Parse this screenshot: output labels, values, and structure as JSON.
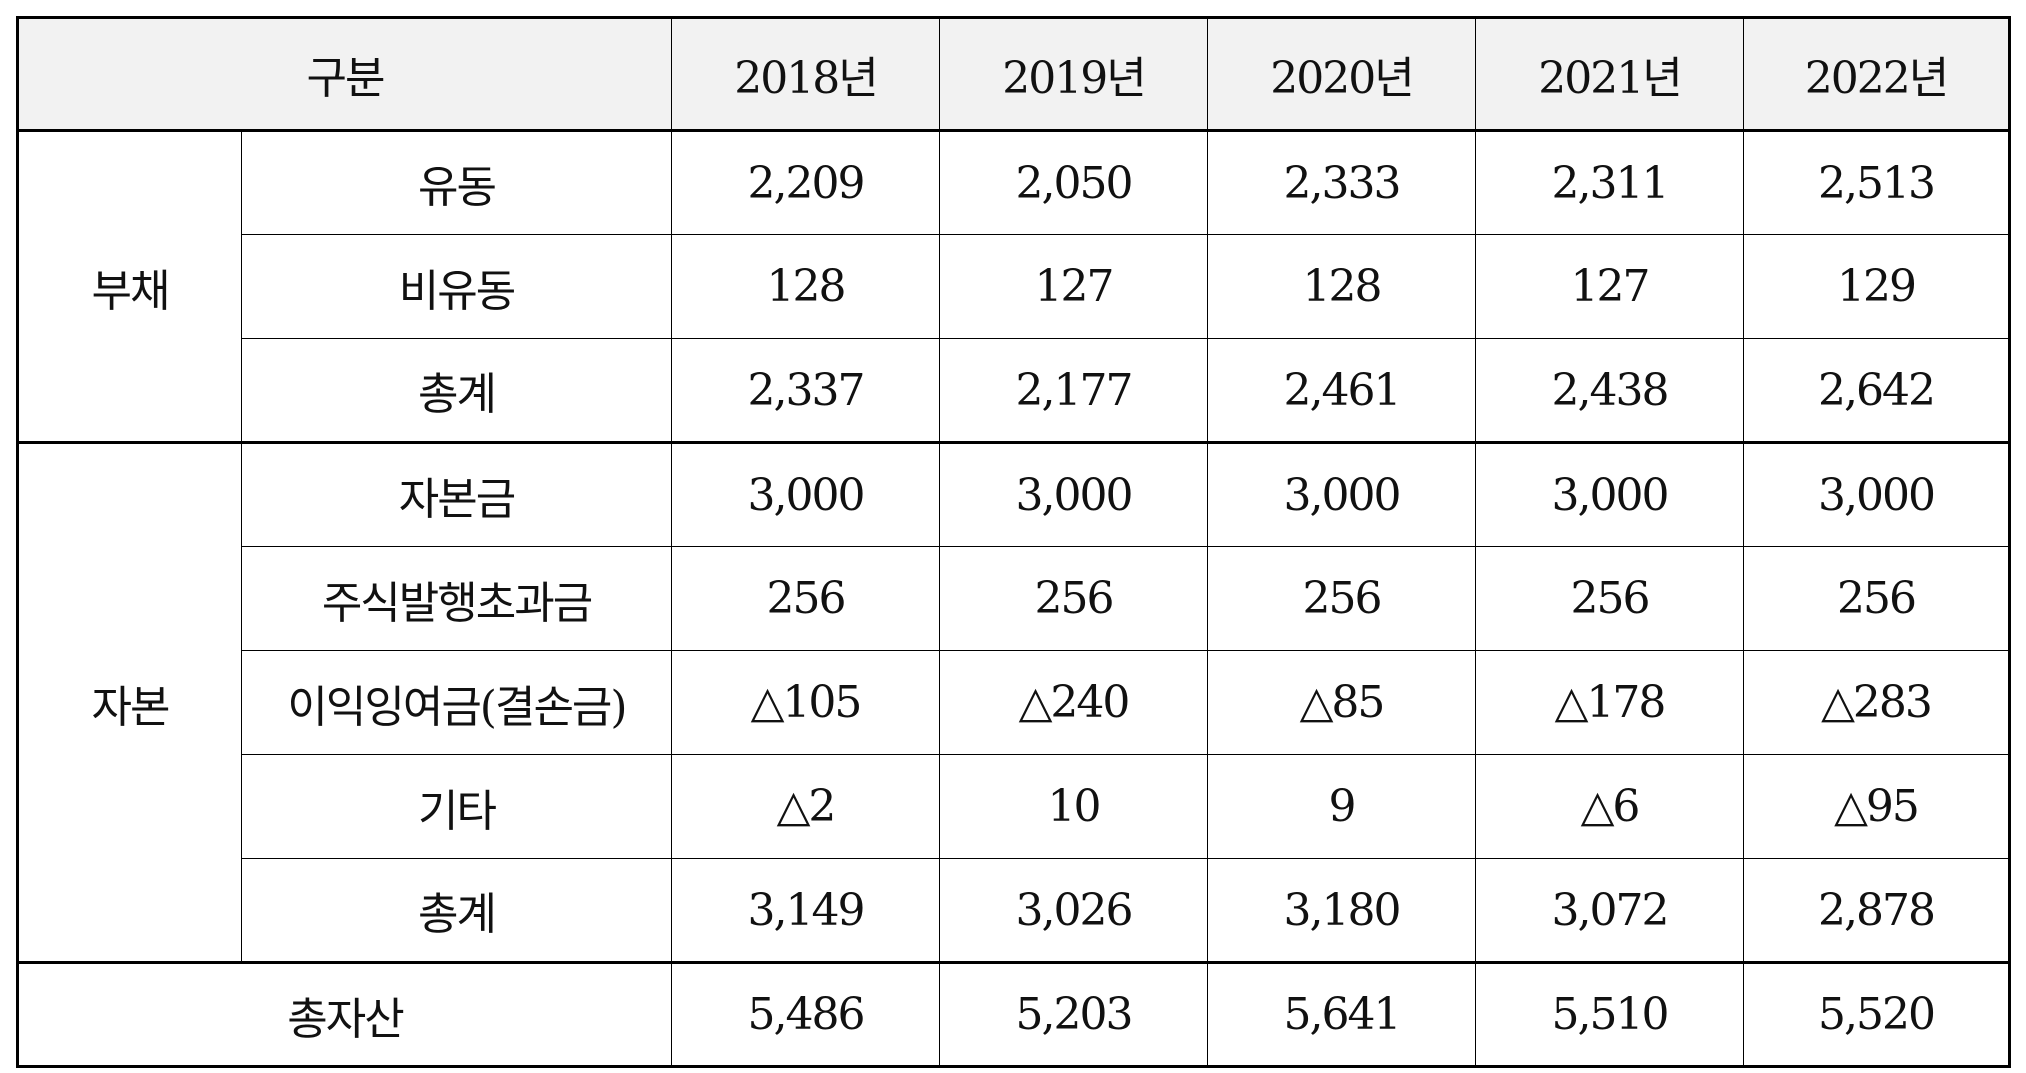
{
  "header": {
    "category_label": "구분",
    "years": [
      "2018년",
      "2019년",
      "2020년",
      "2021년",
      "2022년"
    ]
  },
  "groups": [
    {
      "label": "부채",
      "rows": [
        {
          "label": "유동",
          "values": [
            "2,209",
            "2,050",
            "2,333",
            "2,311",
            "2,513"
          ]
        },
        {
          "label": "비유동",
          "values": [
            "128",
            "127",
            "128",
            "127",
            "129"
          ]
        },
        {
          "label": "총계",
          "values": [
            "2,337",
            "2,177",
            "2,461",
            "2,438",
            "2,642"
          ]
        }
      ]
    },
    {
      "label": "자본",
      "rows": [
        {
          "label": "자본금",
          "values": [
            "3,000",
            "3,000",
            "3,000",
            "3,000",
            "3,000"
          ]
        },
        {
          "label": "주식발행초과금",
          "values": [
            "256",
            "256",
            "256",
            "256",
            "256"
          ]
        },
        {
          "label": "이익잉여금(결손금)",
          "values": [
            "△105",
            "△240",
            "△85",
            "△178",
            "△283"
          ]
        },
        {
          "label": "기타",
          "values": [
            "△2",
            "10",
            "9",
            "△6",
            "△95"
          ]
        },
        {
          "label": "총계",
          "values": [
            "3,149",
            "3,026",
            "3,180",
            "3,072",
            "2,878"
          ]
        }
      ]
    }
  ],
  "total": {
    "label": "총자산",
    "values": [
      "5,486",
      "5,203",
      "5,641",
      "5,510",
      "5,520"
    ]
  }
}
